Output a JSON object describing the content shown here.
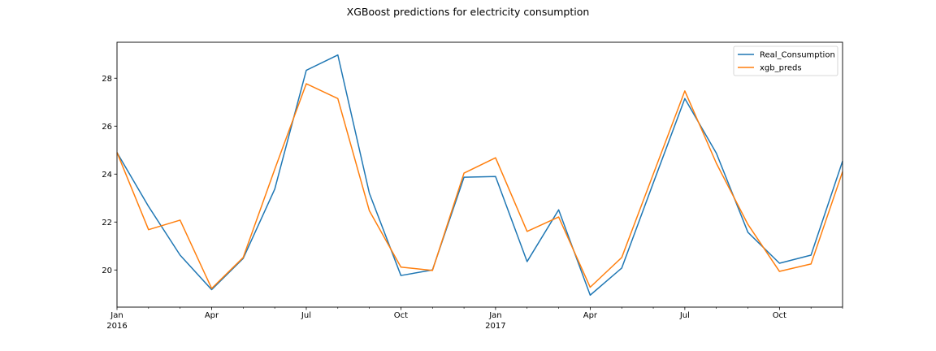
{
  "chart_data": {
    "type": "line",
    "title": "XGBoost predictions for electricity consumption",
    "xlabel": "",
    "ylabel": "",
    "x": [
      "2016-01",
      "2016-02",
      "2016-03",
      "2016-04",
      "2016-05",
      "2016-06",
      "2016-07",
      "2016-08",
      "2016-09",
      "2016-10",
      "2016-11",
      "2016-12",
      "2017-01",
      "2017-02",
      "2017-03",
      "2017-04",
      "2017-05",
      "2017-06",
      "2017-07",
      "2017-08",
      "2017-09",
      "2017-10",
      "2017-11",
      "2017-12"
    ],
    "series": [
      {
        "name": "Real_Consumption",
        "color": "#1f77b4",
        "values": [
          24.9,
          22.65,
          20.62,
          19.18,
          20.48,
          23.37,
          28.33,
          28.97,
          23.2,
          19.77,
          20.0,
          23.87,
          23.9,
          20.35,
          22.51,
          18.95,
          20.08,
          23.63,
          27.15,
          24.87,
          21.57,
          20.28,
          20.62,
          24.54
        ]
      },
      {
        "name": "xgb_preds",
        "color": "#ff7f0e",
        "values": [
          24.9,
          21.68,
          22.08,
          19.23,
          20.52,
          24.2,
          27.77,
          27.15,
          22.47,
          20.12,
          19.98,
          24.04,
          24.68,
          21.61,
          22.21,
          19.28,
          20.52,
          24.0,
          27.47,
          24.45,
          21.9,
          19.94,
          20.25,
          24.1
        ]
      }
    ],
    "ylim": [
      18.45,
      29.5
    ],
    "yticks": [
      "20",
      "22",
      "24",
      "26",
      "28"
    ],
    "major_ticks": [
      {
        "month": "2016-01",
        "label": "Jan",
        "year": "2016"
      },
      {
        "month": "2016-04",
        "label": "Apr",
        "year": ""
      },
      {
        "month": "2016-07",
        "label": "Jul",
        "year": ""
      },
      {
        "month": "2016-10",
        "label": "Oct",
        "year": ""
      },
      {
        "month": "2017-01",
        "label": "Jan",
        "year": "2017"
      },
      {
        "month": "2017-04",
        "label": "Apr",
        "year": ""
      },
      {
        "month": "2017-07",
        "label": "Jul",
        "year": ""
      },
      {
        "month": "2017-10",
        "label": "Oct",
        "year": ""
      }
    ],
    "grid": false,
    "legend_position": "top-right"
  }
}
